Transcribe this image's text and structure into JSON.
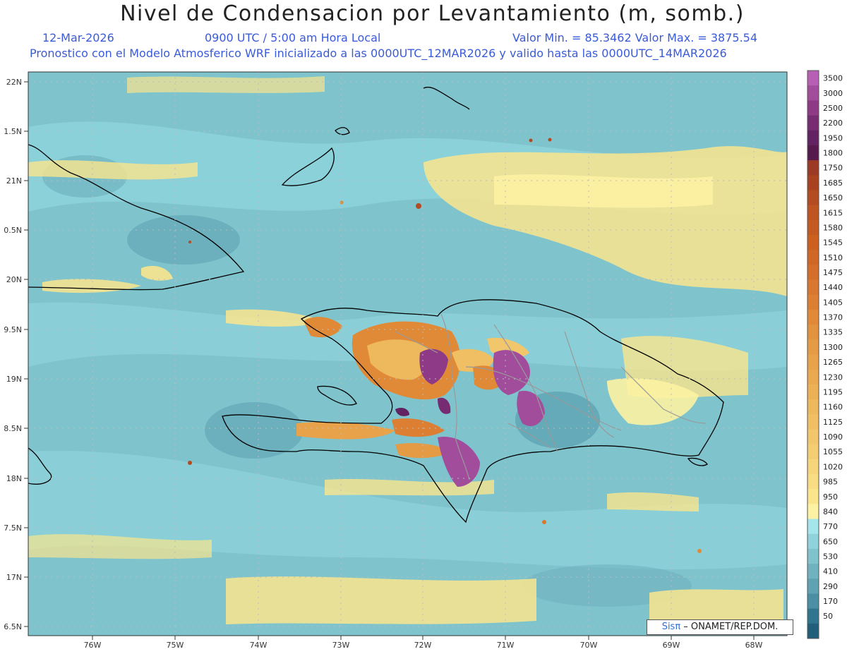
{
  "header": {
    "title": "Nivel de Condensacion por Levantamiento (m, somb.)",
    "date": "12-Mar-2026",
    "time": "0900 UTC / 5:00 am Hora Local",
    "minmax": "Valor Min. = 85.3462  Valor Max. = 3875.54",
    "model_info": "Pronostico con el Modelo Atmosferico WRF inicializado a las 0000UTC_12MAR2026 y valido hasta las  0000UTC_14MAR2026"
  },
  "axes": {
    "lat_labels": [
      "22N",
      "1.5N",
      "21N",
      "0.5N",
      "20N",
      "9.5N",
      "19N",
      "8.5N",
      "18N",
      "7.5N",
      "17N",
      "6.5N"
    ],
    "lon_labels": [
      "76W",
      "75W",
      "74W",
      "73W",
      "72W",
      "71W",
      "70W",
      "69W",
      "68W"
    ]
  },
  "legend": {
    "levels": [
      "3500",
      "3000",
      "2500",
      "2200",
      "1950",
      "1800",
      "1750",
      "1685",
      "1650",
      "1615",
      "1580",
      "1545",
      "1510",
      "1475",
      "1440",
      "1405",
      "1370",
      "1335",
      "1300",
      "1265",
      "1230",
      "1195",
      "1160",
      "1125",
      "1090",
      "1055",
      "1020",
      "985",
      "950",
      "840",
      "770",
      "650",
      "530",
      "410",
      "290",
      "170",
      "50"
    ],
    "colors": [
      "#b65fb5",
      "#a14d9c",
      "#8e3a86",
      "#772c72",
      "#632362",
      "#571a4d",
      "#9c3a25",
      "#a8421f",
      "#b44c22",
      "#bd5421",
      "#c45a21",
      "#cb6021",
      "#d06726",
      "#d56e2a",
      "#d9772e",
      "#dd7f33",
      "#e08a38",
      "#e3923e",
      "#e59a44",
      "#e8a24a",
      "#eaa94f",
      "#ecb055",
      "#eeb85c",
      "#f0bf63",
      "#f2c66b",
      "#f4cd73",
      "#f6d57b",
      "#f8dd84",
      "#fae58d",
      "#fdf2a3",
      "#a3e5ea",
      "#8fd4dc",
      "#7fc4cd",
      "#6fb3bf",
      "#5fa3b2",
      "#4a8fa3",
      "#2f7590",
      "#1f5f7c"
    ]
  },
  "credit": {
    "sis": "Sisπ",
    "rest": " – ONAMET/REP.DOM."
  }
}
